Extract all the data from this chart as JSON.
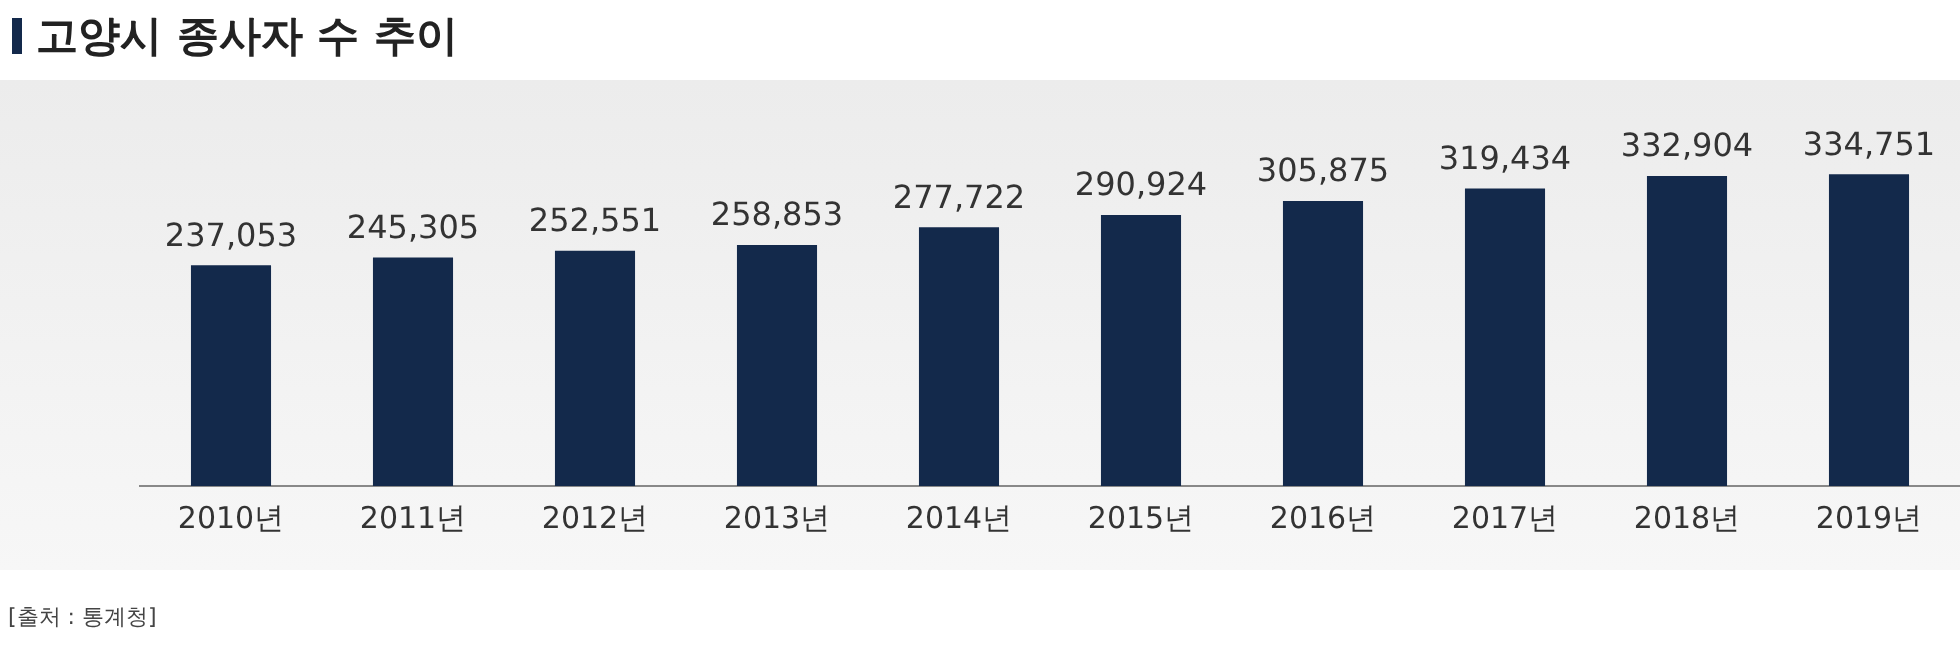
{
  "chart_data": {
    "type": "bar",
    "title": "고양시 종사자 수 추이",
    "categories": [
      "2010년",
      "2011년",
      "2012년",
      "2013년",
      "2014년",
      "2015년",
      "2016년",
      "2017년",
      "2018년",
      "2019년"
    ],
    "values": [
      237053,
      245305,
      252551,
      258853,
      277722,
      290924,
      305875,
      319434,
      332904,
      334751
    ],
    "value_labels": [
      "237,053",
      "245,305",
      "252,551",
      "258,853",
      "277,722",
      "290,924",
      "305,875",
      "319,434",
      "332,904",
      "334,751"
    ],
    "color": "#13294b",
    "grid": false,
    "legend": false,
    "annotations": [
      "[출처 : 통계청]"
    ]
  }
}
